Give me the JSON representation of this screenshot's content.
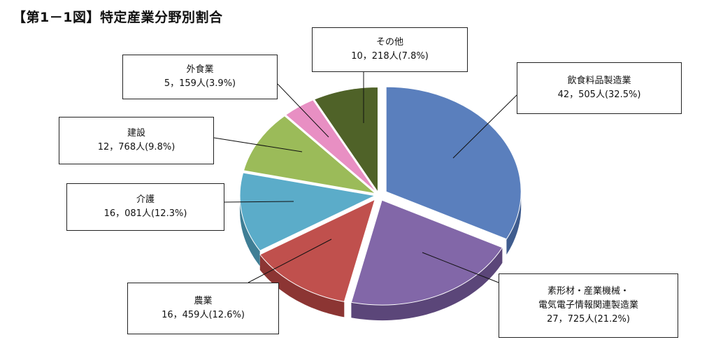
{
  "chart_data": {
    "type": "pie",
    "title": "【第1－1図】特定産業分野別割合",
    "unit": "人",
    "slices": [
      {
        "name": "飲食料品製造業",
        "name_lines": [
          "飲食料品製造業"
        ],
        "value": 42505,
        "value_text": "42，505人",
        "percent": 32.5,
        "percent_text": "(32.5%)",
        "color": "#5a7fbd",
        "side": "#3f5c8e"
      },
      {
        "name": "素形材・産業機械・電気電子情報関連製造業",
        "name_lines": [
          "素形材・産業機械・",
          "電気電子情報関連製造業"
        ],
        "value": 27725,
        "value_text": "27，725人",
        "percent": 21.2,
        "percent_text": "(21.2%)",
        "color": "#8267a8",
        "side": "#5b4679"
      },
      {
        "name": "農業",
        "name_lines": [
          "農業"
        ],
        "value": 16459,
        "value_text": "16，459人",
        "percent": 12.6,
        "percent_text": "(12.6%)",
        "color": "#c0504d",
        "side": "#8c3533"
      },
      {
        "name": "介護",
        "name_lines": [
          "介護"
        ],
        "value": 16081,
        "value_text": "16，081人",
        "percent": 12.3,
        "percent_text": "(12.3%)",
        "color": "#5bacc9",
        "side": "#3f7e95"
      },
      {
        "name": "建設",
        "name_lines": [
          "建設"
        ],
        "value": 12768,
        "value_text": "12，768人",
        "percent": 9.8,
        "percent_text": "(9.8%)",
        "color": "#9bbb59",
        "side": "#6f883d"
      },
      {
        "name": "外食業",
        "name_lines": [
          "外食業"
        ],
        "value": 5159,
        "value_text": "5，159人",
        "percent": 3.9,
        "percent_text": "(3.9%)",
        "color": "#e88fc3",
        "side": "#b0608f"
      },
      {
        "name": "その他",
        "name_lines": [
          "その他"
        ],
        "value": 10218,
        "value_text": "10，218人",
        "percent": 7.8,
        "percent_text": "(7.8%)",
        "color": "#4f6228",
        "side": "#34421a"
      }
    ]
  }
}
